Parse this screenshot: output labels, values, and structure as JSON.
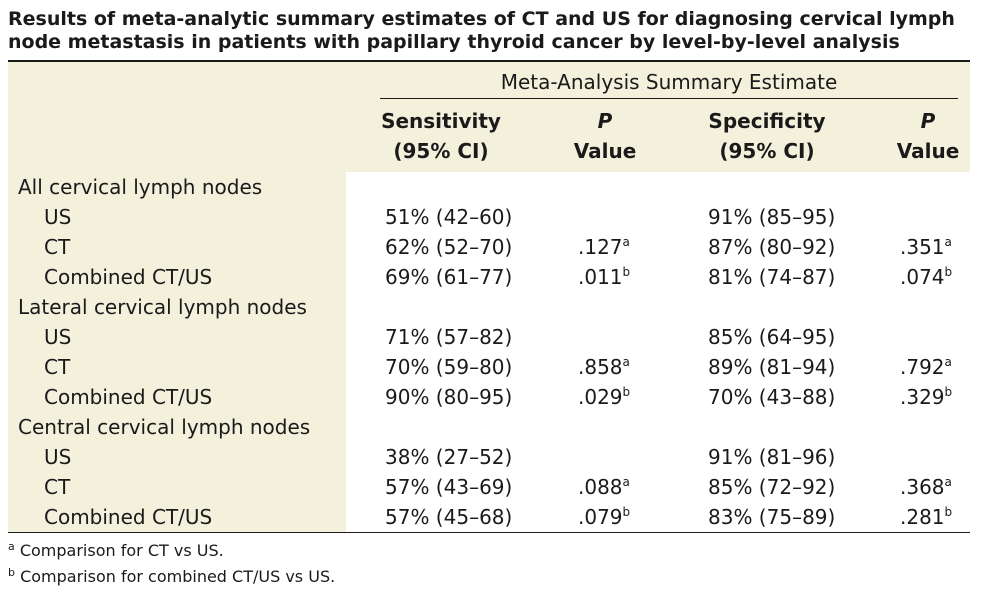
{
  "title": {
    "line1": "Results of meta-analytic summary estimates of CT and US for diagnosing cervical lymph",
    "line2": "node metastasis in patients with papillary thyroid cancer by level-by-level analysis"
  },
  "header": {
    "group": "Meta-Analysis Summary Estimate",
    "columns": [
      {
        "line1": "Sensitivity",
        "line2": "(95% CI)"
      },
      {
        "line1": "P",
        "line2": "Value"
      },
      {
        "line1": "Specificity",
        "line2": "(95% CI)"
      },
      {
        "line1": "P",
        "line2": "Value"
      }
    ]
  },
  "sections": [
    {
      "title": "All cervical lymph nodes",
      "rows": [
        {
          "label": "US",
          "sens": "51% (42–60)",
          "p1": "",
          "p1sup": "",
          "spec": "91% (85–95)",
          "p2": "",
          "p2sup": ""
        },
        {
          "label": "CT",
          "sens": "62% (52–70)",
          "p1": ".127",
          "p1sup": "a",
          "spec": "87% (80–92)",
          "p2": ".351",
          "p2sup": "a"
        },
        {
          "label": "Combined CT/US",
          "sens": "69% (61–77)",
          "p1": ".011",
          "p1sup": "b",
          "spec": "81% (74–87)",
          "p2": ".074",
          "p2sup": "b"
        }
      ]
    },
    {
      "title": "Lateral cervical lymph nodes",
      "rows": [
        {
          "label": "US",
          "sens": "71% (57–82)",
          "p1": "",
          "p1sup": "",
          "spec": "85% (64–95)",
          "p2": "",
          "p2sup": ""
        },
        {
          "label": "CT",
          "sens": "70% (59–80)",
          "p1": ".858",
          "p1sup": "a",
          "spec": "89% (81–94)",
          "p2": ".792",
          "p2sup": "a"
        },
        {
          "label": "Combined CT/US",
          "sens": "90% (80–95)",
          "p1": ".029",
          "p1sup": "b",
          "spec": "70% (43–88)",
          "p2": ".329",
          "p2sup": "b"
        }
      ]
    },
    {
      "title": "Central cervical lymph nodes",
      "rows": [
        {
          "label": "US",
          "sens": "38% (27–52)",
          "p1": "",
          "p1sup": "",
          "spec": "91% (81–96)",
          "p2": "",
          "p2sup": ""
        },
        {
          "label": "CT",
          "sens": "57% (43–69)",
          "p1": ".088",
          "p1sup": "a",
          "spec": "85% (72–92)",
          "p2": ".368",
          "p2sup": "a"
        },
        {
          "label": "Combined CT/US",
          "sens": "57% (45–68)",
          "p1": ".079",
          "p1sup": "b",
          "spec": "83% (75–89)",
          "p2": ".281",
          "p2sup": "b"
        }
      ]
    }
  ],
  "footnotes": [
    {
      "mark": "a",
      "text": "Comparison for CT vs US."
    },
    {
      "mark": "b",
      "text": "Comparison for combined CT/US vs US."
    }
  ],
  "colors": {
    "panel": "#f3f0dc",
    "text": "#1a1a1a"
  }
}
